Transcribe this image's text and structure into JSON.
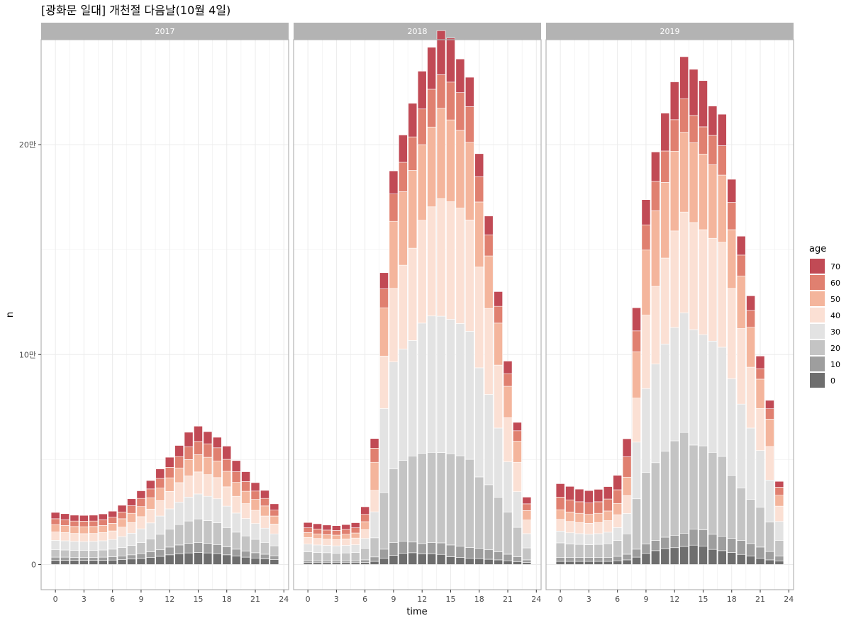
{
  "title": "[광화문 일대] 개천절 다음날(10월 4일)",
  "colors": {
    "strip_bg": "#b3b3b3",
    "panel_border": "#b3b3b3",
    "grid": "#ebebeb",
    "age": {
      "0": "#6e6e6e",
      "10": "#9e9e9e",
      "20": "#c4c4c4",
      "30": "#e3e3e3",
      "40": "#fbe0d4",
      "50": "#f4b59c",
      "60": "#e08070",
      "70": "#c14a55"
    }
  },
  "chart_data": {
    "type": "bar",
    "stacked": true,
    "title": "[광화문 일대] 개천절 다음날(10월 4일)",
    "xlabel": "time",
    "ylabel": "n",
    "x_ticks": [
      0,
      3,
      6,
      9,
      12,
      15,
      18,
      21,
      24
    ],
    "x_range": [
      -1.5,
      24.5
    ],
    "y_ticks": [
      0,
      100000,
      200000
    ],
    "y_tick_labels": [
      "0",
      "10만",
      "20만"
    ],
    "y_range": [
      -12000,
      250000
    ],
    "grid": true,
    "legend": {
      "title": "age",
      "position": "right",
      "entries": [
        "70",
        "60",
        "50",
        "40",
        "30",
        "20",
        "10",
        "0"
      ]
    },
    "stack_order": [
      "0",
      "10",
      "20",
      "30",
      "40",
      "50",
      "60",
      "70"
    ],
    "x": [
      0,
      1,
      2,
      3,
      4,
      5,
      6,
      7,
      8,
      9,
      10,
      11,
      12,
      13,
      14,
      15,
      16,
      17,
      18,
      19,
      20,
      21,
      22,
      23
    ],
    "panels": [
      {
        "label": "2017",
        "series": [
          {
            "name": "0",
            "values": [
              2000,
              2000,
              2000,
              2000,
              2000,
              2000,
              2100,
              2300,
              2600,
              2900,
              3300,
              3900,
              4600,
              5100,
              5500,
              5700,
              5500,
              5200,
              4600,
              4000,
              3500,
              3100,
              2700,
              2300
            ]
          },
          {
            "name": "10",
            "values": [
              1500,
              1500,
              1400,
              1400,
              1400,
              1500,
              1600,
              1800,
              2000,
              2300,
              2700,
              3100,
              3700,
              4200,
              4600,
              4800,
              4600,
              4300,
              3800,
              3300,
              2900,
              2500,
              2200,
              1900
            ]
          },
          {
            "name": "20",
            "values": [
              3500,
              3400,
              3300,
              3300,
              3300,
              3400,
              3600,
              4000,
              4500,
              5200,
              6200,
              7400,
              8600,
              9800,
              10600,
              11200,
              10800,
              10400,
              9200,
              8100,
              7200,
              6400,
              5600,
              4700
            ]
          },
          {
            "name": "30",
            "values": [
              4500,
              4400,
              4300,
              4200,
              4300,
              4400,
              4600,
              5200,
              5800,
              6600,
              7600,
              8700,
              9600,
              10600,
              11400,
              11900,
              11600,
              11400,
              10200,
              9100,
              8300,
              7500,
              6800,
              5700
            ]
          },
          {
            "name": "40",
            "values": [
              4000,
              3900,
              3800,
              3800,
              3800,
              3900,
              4100,
              4500,
              5100,
              5800,
              6600,
              7300,
              8300,
              9300,
              10100,
              10500,
              10300,
              10100,
              9200,
              8000,
              7100,
              6300,
              5800,
              4700
            ]
          },
          {
            "name": "50",
            "values": [
              3500,
              3400,
              3300,
              3300,
              3300,
              3400,
              3600,
              4000,
              4400,
              4800,
              5400,
              6000,
              6500,
              7000,
              7800,
              8200,
              8300,
              7900,
              7400,
              6600,
              5900,
              5200,
              4800,
              3800
            ]
          },
          {
            "name": "60",
            "values": [
              2800,
              2700,
              2600,
              2600,
              2600,
              2700,
              2900,
              3200,
              3600,
              3900,
              4200,
              4600,
              5000,
              5400,
              6100,
              6300,
              6400,
              6300,
              5700,
              5100,
              4600,
              4000,
              3600,
              2800
            ]
          },
          {
            "name": "70",
            "values": [
              3000,
              2900,
              2800,
              2800,
              2800,
              2800,
              2900,
              3200,
              3300,
              3600,
              4000,
              4500,
              4800,
              5300,
              6900,
              7300,
              5800,
              5000,
              6300,
              5300,
              4700,
              4000,
              3800,
              3000
            ]
          }
        ]
      },
      {
        "label": "2018",
        "series": [
          {
            "name": "0",
            "values": [
              900,
              900,
              900,
              900,
              900,
              900,
              1000,
              1500,
              3000,
              4400,
              5400,
              5600,
              5000,
              5100,
              4800,
              3700,
              3400,
              3000,
              2800,
              2500,
              2200,
              1800,
              1400,
              1000
            ]
          },
          {
            "name": "10",
            "values": [
              900,
              800,
              800,
              800,
              800,
              800,
              1200,
              2100,
              4300,
              6100,
              5700,
              5100,
              5000,
              5300,
              5500,
              5600,
              5400,
              5100,
              4900,
              4500,
              3800,
              3100,
              2300,
              1200
            ]
          },
          {
            "name": "20",
            "values": [
              4200,
              4000,
              3900,
              3700,
              3800,
              4000,
              5500,
              9100,
              27000,
              35000,
              38500,
              41000,
              43000,
              43000,
              43000,
              43500,
              43000,
              42000,
              34000,
              31000,
              26000,
              20000,
              14000,
              5700
            ]
          },
          {
            "name": "30",
            "values": [
              3700,
              3600,
              3500,
              3500,
              3600,
              3700,
              4700,
              12400,
              40000,
              51000,
              53000,
              55000,
              62000,
              65000,
              65000,
              64000,
              63000,
              61000,
              52000,
              43000,
              33000,
              24000,
              17000,
              6800
            ]
          },
          {
            "name": "40",
            "values": [
              3200,
              3100,
              3000,
              3000,
              3100,
              3200,
              4200,
              10200,
              25000,
              35000,
              40000,
              44000,
              49000,
              52000,
              56000,
              56000,
              55000,
              53000,
              48000,
              41000,
              30000,
              21000,
              14000,
              6500
            ]
          },
          {
            "name": "50",
            "values": [
              2300,
              2200,
              2100,
              2100,
              2200,
              2400,
              3800,
              13400,
              23000,
              32000,
              35000,
              37000,
              36000,
              38000,
              43000,
              39000,
              37000,
              37000,
              31000,
              25000,
              20000,
              15000,
              10000,
              4500
            ]
          },
          {
            "name": "60",
            "values": [
              2300,
              2300,
              2200,
              2200,
              2300,
              2500,
              3500,
              6700,
              9000,
              13000,
              14000,
              16000,
              17000,
              18000,
              16000,
              18000,
              18000,
              17000,
              12000,
              10000,
              8000,
              6000,
              5000,
              3200
            ]
          },
          {
            "name": "70",
            "values": [
              2500,
              2500,
              2400,
              2300,
              2300,
              2400,
              3600,
              4600,
              7700,
              11000,
              13000,
              16000,
              18000,
              20000,
              21000,
              21000,
              16000,
              14000,
              11000,
              9000,
              7000,
              6000,
              4000,
              3200
            ]
          }
        ]
      },
      {
        "label": "2019",
        "series": [
          {
            "name": "0",
            "values": [
              1500,
              1500,
              1500,
              1500,
              1500,
              1500,
              1800,
              2200,
              3500,
              5300,
              6600,
              7600,
              8000,
              8600,
              9200,
              8700,
              7200,
              6600,
              5700,
              4800,
              4000,
              3000,
              2200,
              1600
            ]
          },
          {
            "name": "10",
            "values": [
              1800,
              1800,
              1800,
              1800,
              1800,
              1800,
              2100,
              2700,
              3800,
              4500,
              4900,
              5400,
              5900,
              6300,
              7700,
              7800,
              7200,
              6900,
              6800,
              6600,
              6000,
              5300,
              4000,
              2400
            ]
          },
          {
            "name": "20",
            "values": [
              7000,
              6500,
              6300,
              6100,
              6300,
              6600,
              7500,
              9700,
              24000,
              34000,
              37000,
              41000,
              45000,
              48000,
              40000,
              40000,
              39000,
              38000,
              30000,
              25000,
              21000,
              19000,
              14000,
              7500
            ]
          },
          {
            "name": "30",
            "values": [
              5600,
              5300,
              5100,
              5000,
              5100,
              5500,
              6200,
              9700,
              27000,
              40000,
              47000,
              51000,
              54000,
              57000,
              55000,
              53000,
              53000,
              52000,
              46000,
              40000,
              34000,
              27000,
              20000,
              9000
            ]
          },
          {
            "name": "40",
            "values": [
              5600,
              5400,
              5300,
              5200,
              5300,
              5500,
              6100,
              8500,
              21000,
              35000,
              37000,
              41000,
              46000,
              48000,
              51000,
              50000,
              49000,
              50000,
              43000,
              36000,
              29000,
              20000,
              16000,
              7300
            ]
          },
          {
            "name": "50",
            "values": [
              4600,
              4500,
              4400,
              4300,
              4400,
              4600,
              5400,
              8800,
              22000,
              31000,
              36000,
              36000,
              38000,
              38000,
              38000,
              36000,
              35000,
              32000,
              28000,
              25000,
              19000,
              14000,
              13000,
              5200
            ]
          },
          {
            "name": "60",
            "values": [
              6000,
              5800,
              5500,
              5400,
              5500,
              5700,
              6500,
              9700,
              10000,
              12000,
              14000,
              15000,
              15000,
              16000,
              13000,
              13000,
              14000,
              14000,
              13000,
              10000,
              8000,
              5000,
              5000,
              3800
            ]
          },
          {
            "name": "70",
            "values": [
              6400,
              6400,
              6000,
              5900,
              5900,
              5900,
              6900,
              8600,
              11000,
              12000,
              14000,
              18000,
              18000,
              20000,
              22000,
              22000,
              14000,
              15000,
              11000,
              9000,
              7000,
              6000,
              4000,
              2800
            ]
          }
        ]
      }
    ]
  }
}
